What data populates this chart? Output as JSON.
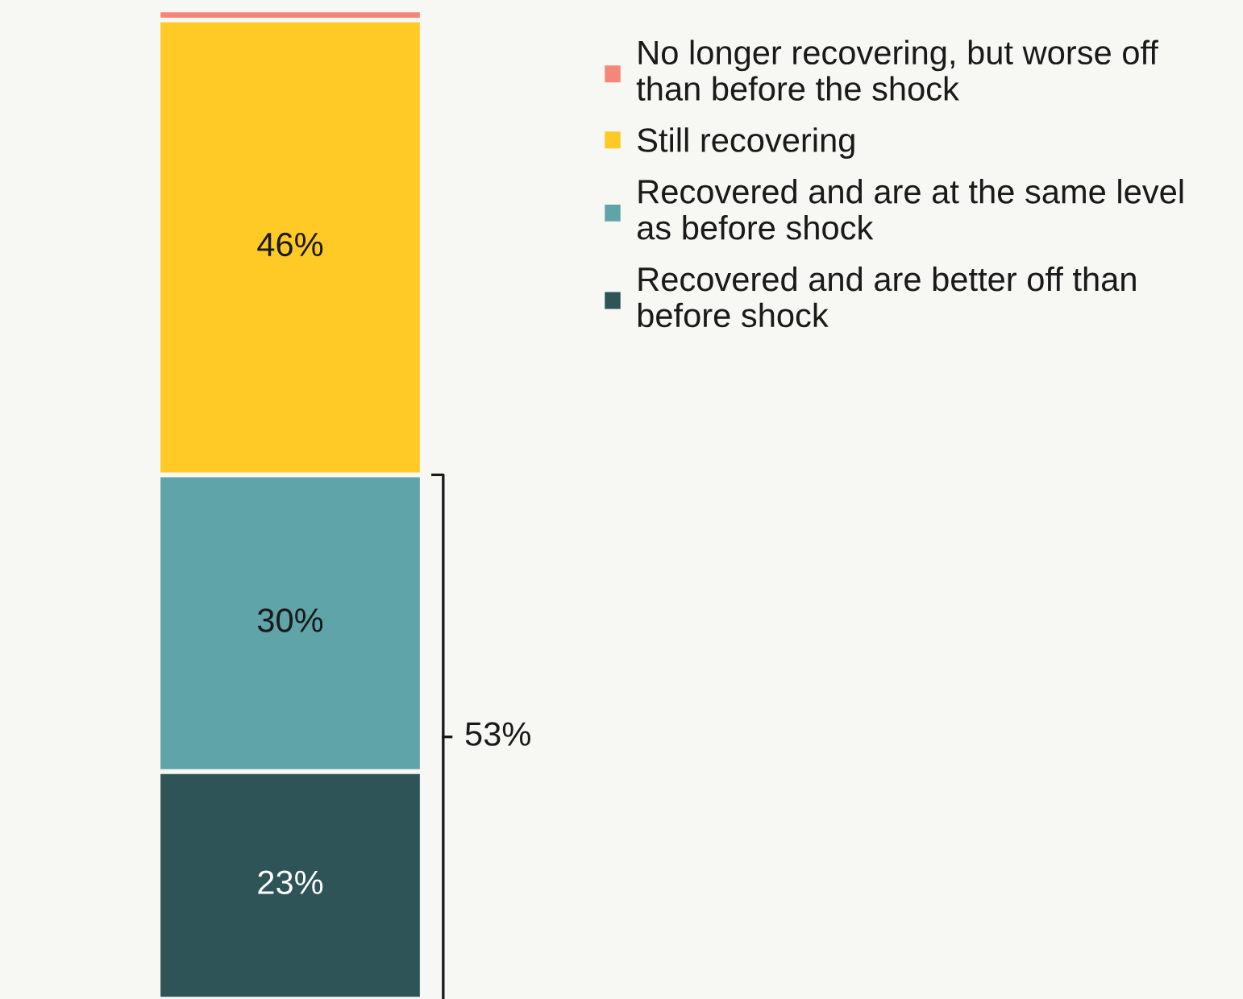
{
  "chart_data": {
    "type": "bar",
    "stacked": true,
    "categories": [
      null
    ],
    "series": [
      {
        "name": "Recovered and are better off than\nbefore shock",
        "color": "#2f5457",
        "values": [
          23
        ],
        "value_labels": [
          "23%"
        ]
      },
      {
        "name": "Recovered and are at the same level\nas before shock",
        "color": "#5fa4a8",
        "values": [
          30
        ],
        "value_labels": [
          "30%"
        ]
      },
      {
        "name": "Still recovering",
        "color": "#ffc926",
        "values": [
          46
        ],
        "value_labels": [
          "46%"
        ]
      },
      {
        "name": "No longer recovering, but worse off\nthan before the shock",
        "color": "#f4877a",
        "values": [
          1
        ],
        "value_labels": [
          null
        ]
      }
    ],
    "annotations": [
      "53%"
    ],
    "legend": "top right"
  }
}
